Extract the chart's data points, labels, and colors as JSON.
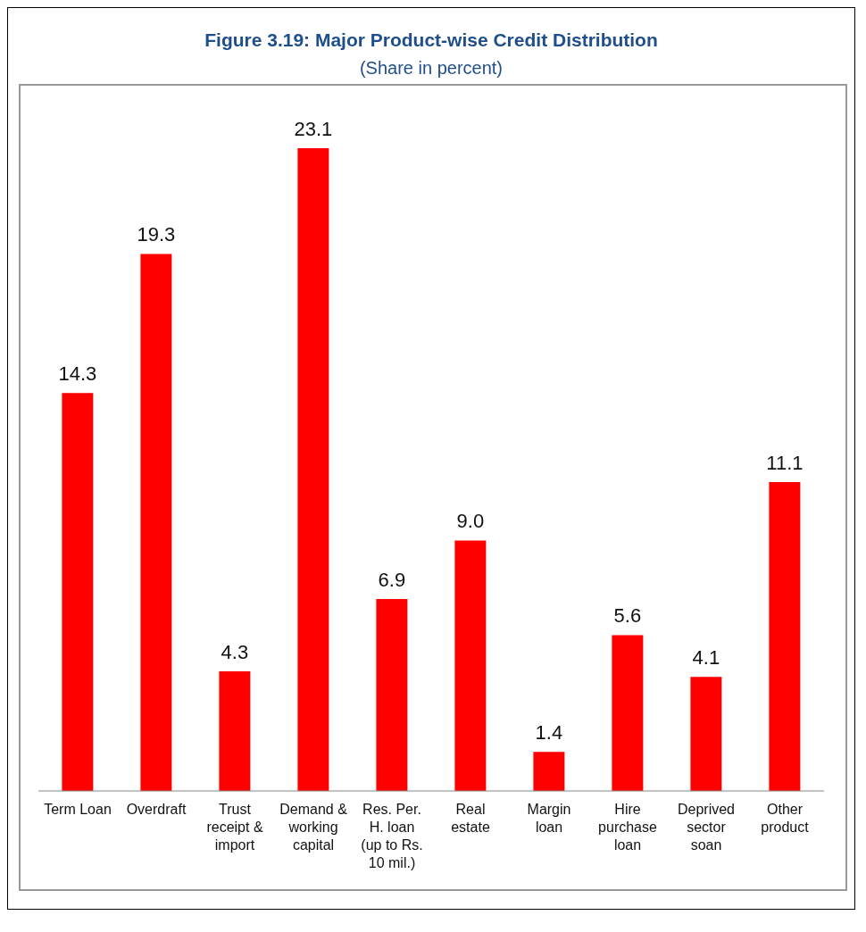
{
  "chart_data": {
    "type": "bar",
    "title": "Figure 3.19: Major Product-wise Credit Distribution",
    "subtitle": "(Share in percent)",
    "categories": [
      "Term Loan",
      "Overdraft",
      "Trust receipt & import",
      "Demand & working capital",
      "Res. Per. H. loan (up to Rs. 10 mil.)",
      "Real estate",
      "Margin loan",
      "Hire purchase loan",
      "Deprived sector soan",
      "Other product"
    ],
    "values": [
      14.3,
      19.3,
      4.3,
      23.1,
      6.9,
      9.0,
      1.4,
      5.6,
      4.1,
      11.1
    ],
    "value_labels": [
      "14.3",
      "19.3",
      "4.3",
      "23.1",
      "6.9",
      "9.0",
      "1.4",
      "5.6",
      "4.1",
      "11.1"
    ],
    "color": "#ff0000"
  }
}
